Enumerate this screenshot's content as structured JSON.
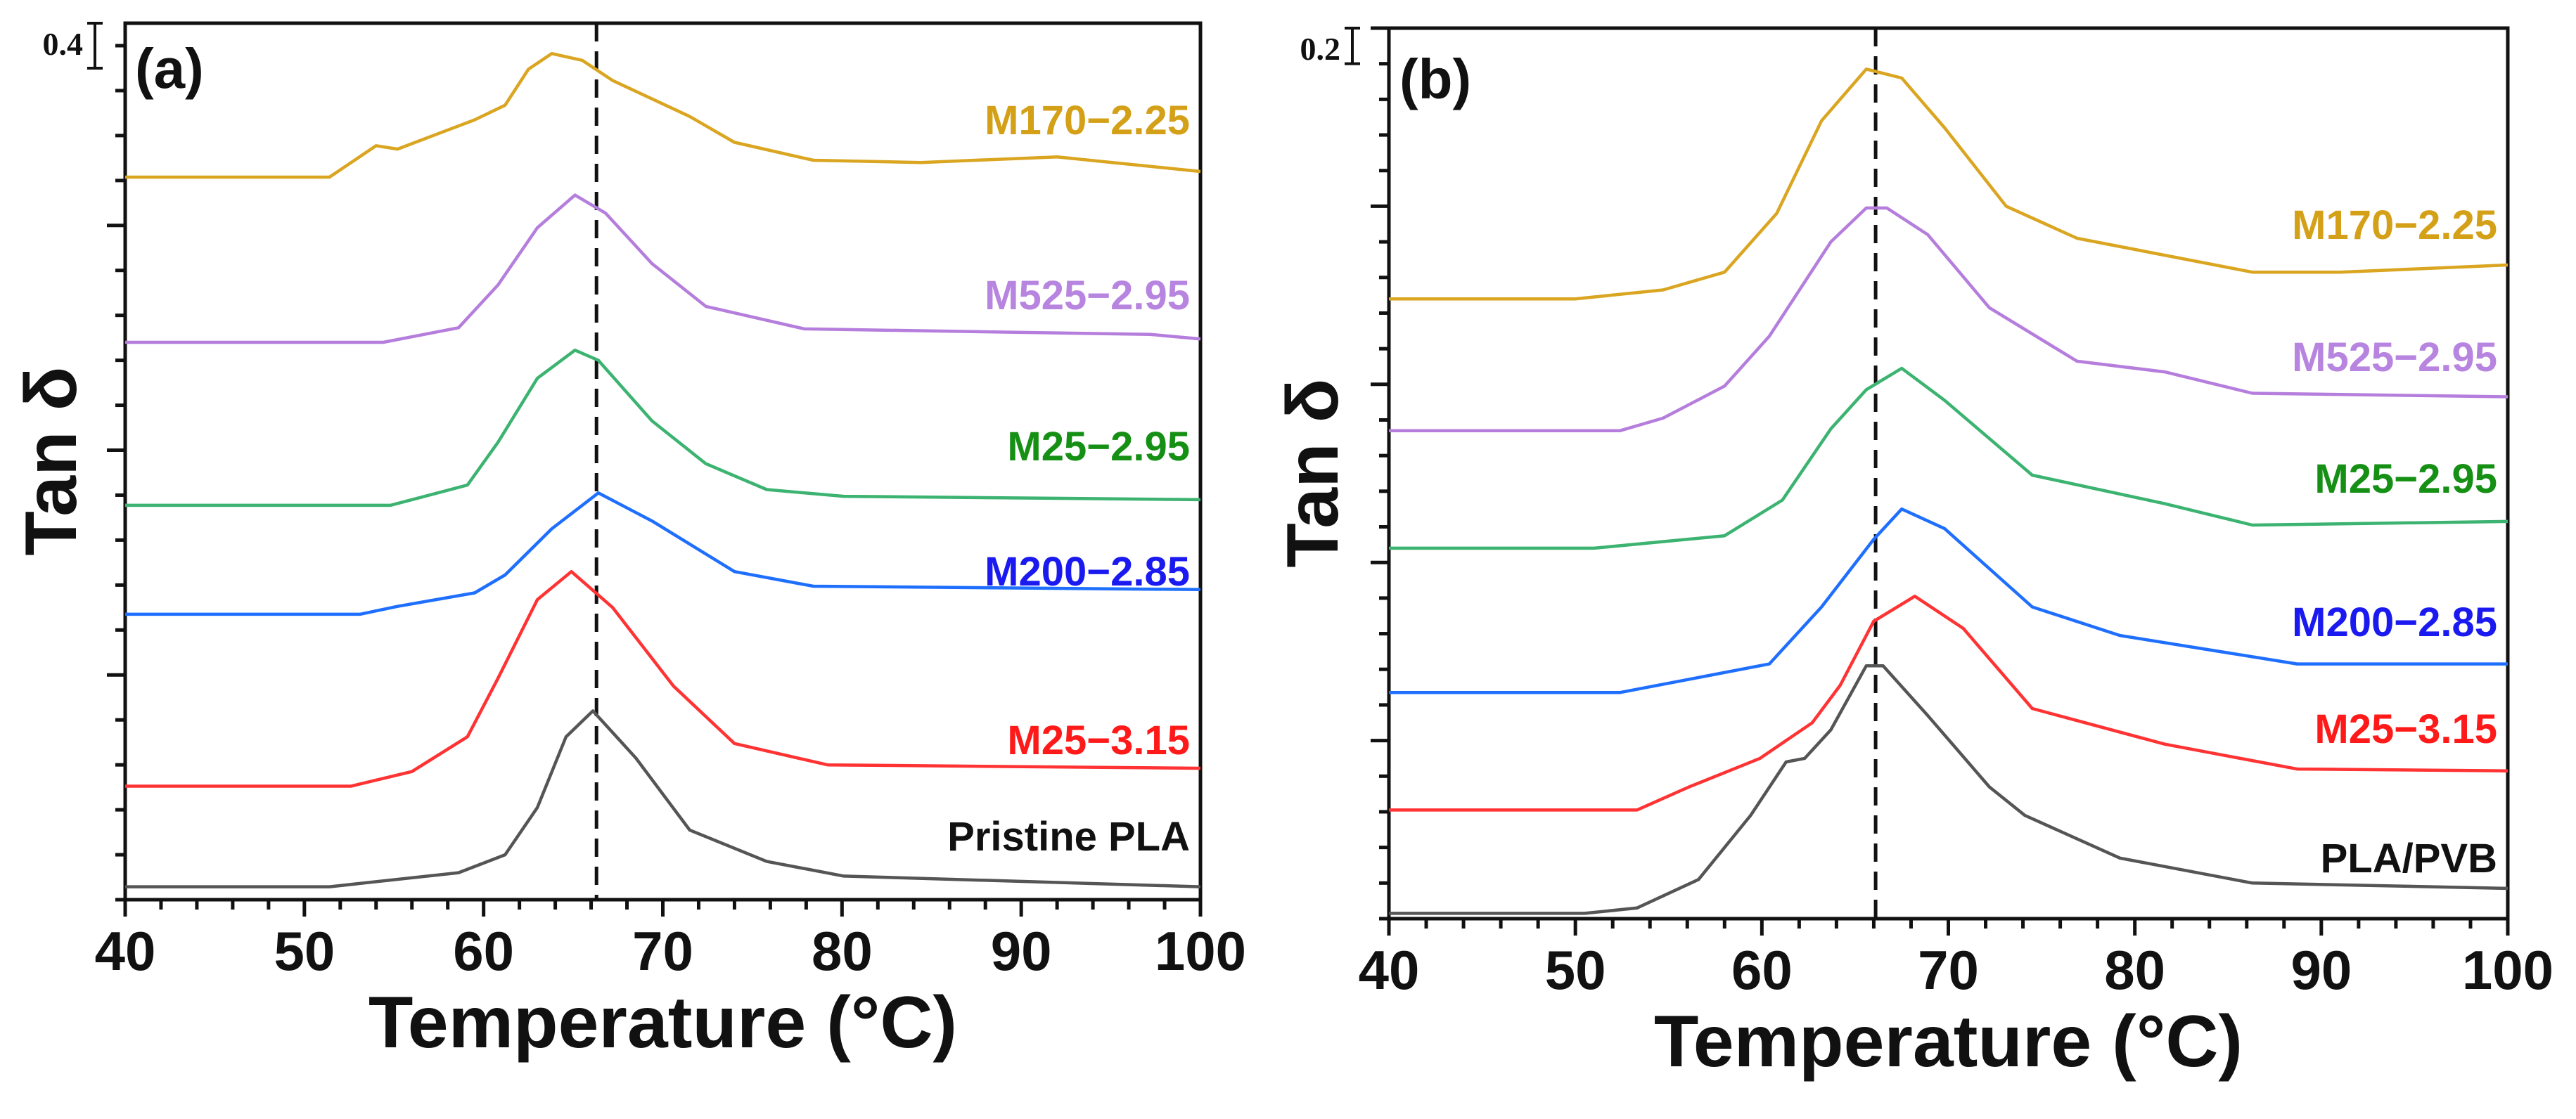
{
  "chart_data": [
    {
      "type": "line",
      "panel_label": "(a)",
      "xlabel": "Temperature (°C)",
      "xlabel_main": "Temperature (",
      "xlabel_unit": "o",
      "xlabel_end": "C)",
      "ylabel": "Tan δ",
      "xlim": [
        40,
        100
      ],
      "ylim": [
        0,
        7.8
      ],
      "x_ticks": [
        40,
        50,
        60,
        70,
        80,
        90,
        100
      ],
      "x_tick_labels": [
        "40",
        "50",
        "60",
        "70",
        "80",
        "90",
        "100"
      ],
      "x_minor_step": 2,
      "y_minor_step": 0.4,
      "y_major_step": 2.0,
      "scale_bar": {
        "label": "0.4",
        "value": 0.4
      },
      "reference_line_x": 66.3,
      "series": [
        {
          "name": "M170−2.25",
          "line_color": "#DAA520",
          "label_color": "#D4A017",
          "x": [
            40,
            51.4,
            54,
            55.2,
            59.5,
            61.2,
            62.5,
            63.8,
            65.5,
            67.2,
            71.5,
            74,
            78.4,
            84.4,
            92,
            100
          ],
          "y": [
            6.43,
            6.43,
            6.71,
            6.68,
            6.94,
            7.07,
            7.39,
            7.53,
            7.47,
            7.29,
            6.97,
            6.74,
            6.58,
            6.56,
            6.61,
            6.48
          ]
        },
        {
          "name": "M525−2.95",
          "line_color": "#B57EDC",
          "label_color": "#B784E0",
          "x": [
            40,
            54.4,
            58.6,
            60.8,
            63,
            65.1,
            66.8,
            69.4,
            72.4,
            77.9,
            97.2,
            100
          ],
          "y": [
            4.96,
            4.96,
            5.09,
            5.47,
            5.98,
            6.27,
            6.11,
            5.66,
            5.28,
            5.08,
            5.03,
            4.99
          ]
        },
        {
          "name": "M25−2.95",
          "line_color": "#3CB371",
          "label_color": "#159015",
          "x": [
            40,
            54.8,
            59.1,
            60.8,
            63,
            65.1,
            66.4,
            69.4,
            72.4,
            75.8,
            80.1,
            100
          ],
          "y": [
            3.51,
            3.51,
            3.69,
            4.07,
            4.64,
            4.89,
            4.8,
            4.26,
            3.88,
            3.65,
            3.59,
            3.56
          ]
        },
        {
          "name": "M200−2.85",
          "line_color": "#1F6FFF",
          "label_color": "#1A1AF0",
          "x": [
            40,
            53.1,
            55.2,
            59.5,
            61.2,
            63.8,
            66.4,
            69.4,
            74,
            78.4,
            100
          ],
          "y": [
            2.54,
            2.54,
            2.61,
            2.73,
            2.89,
            3.3,
            3.62,
            3.37,
            2.92,
            2.79,
            2.76
          ]
        },
        {
          "name": "M25−3.15",
          "line_color": "#FF3333",
          "label_color": "#FF1A1A",
          "x": [
            40,
            52.6,
            56,
            59.1,
            60.8,
            63,
            64.9,
            67.2,
            70.6,
            74,
            79.2,
            100
          ],
          "y": [
            1.01,
            1.01,
            1.14,
            1.45,
            1.97,
            2.67,
            2.92,
            2.6,
            1.9,
            1.39,
            1.2,
            1.17
          ]
        },
        {
          "name": "Pristine PLA",
          "line_color": "#555555",
          "label_color": "#111111",
          "x": [
            40,
            51.4,
            58.6,
            61.2,
            63,
            64.6,
            66.1,
            68.5,
            71.5,
            75.8,
            80.1,
            100
          ],
          "y": [
            0.115,
            0.115,
            0.24,
            0.4,
            0.82,
            1.45,
            1.68,
            1.26,
            0.62,
            0.34,
            0.21,
            0.115
          ]
        }
      ]
    },
    {
      "type": "line",
      "panel_label": "(b)",
      "xlabel": "Temperature (°C)",
      "xlabel_main": "Temperature (",
      "xlabel_unit": "o",
      "xlabel_end": "C)",
      "ylabel": "Tan δ",
      "xlim": [
        40,
        100
      ],
      "ylim": [
        0,
        5.0
      ],
      "x_ticks": [
        40,
        50,
        60,
        70,
        80,
        90,
        100
      ],
      "x_tick_labels": [
        "40",
        "50",
        "60",
        "70",
        "80",
        "90",
        "100"
      ],
      "x_minor_step": 2,
      "y_minor_step": 0.2,
      "y_major_step": 1.0,
      "scale_bar": {
        "label": "0.2",
        "value": 0.2
      },
      "reference_line_x": 66.1,
      "series": [
        {
          "name": "M170−2.25",
          "line_color": "#DAA520",
          "label_color": "#D4A017",
          "x": [
            40,
            50,
            54.7,
            58,
            60.8,
            63.2,
            65.6,
            67.5,
            69.8,
            73.1,
            76.9,
            86.3,
            91,
            100
          ],
          "y": [
            3.48,
            3.48,
            3.53,
            3.63,
            3.96,
            4.48,
            4.77,
            4.72,
            4.44,
            4.0,
            3.82,
            3.63,
            3.63,
            3.67
          ]
        },
        {
          "name": "M525−2.95",
          "line_color": "#B57EDC",
          "label_color": "#B784E0",
          "x": [
            40,
            52.4,
            54.7,
            58,
            60.4,
            63.7,
            65.6,
            66.7,
            68.9,
            72.2,
            76.9,
            81.6,
            86.3,
            100
          ],
          "y": [
            2.74,
            2.74,
            2.81,
            2.99,
            3.27,
            3.8,
            3.99,
            3.99,
            3.84,
            3.43,
            3.13,
            3.07,
            2.95,
            2.93
          ]
        },
        {
          "name": "M25−2.95",
          "line_color": "#3CB371",
          "label_color": "#159015",
          "x": [
            40,
            51,
            58,
            61.1,
            63.7,
            65.6,
            67.5,
            69.8,
            74.5,
            81.6,
            86.3,
            100
          ],
          "y": [
            2.08,
            2.08,
            2.15,
            2.35,
            2.75,
            2.97,
            3.09,
            2.91,
            2.49,
            2.33,
            2.21,
            2.23
          ]
        },
        {
          "name": "M200−2.85",
          "line_color": "#1F6FFF",
          "label_color": "#1A1AF0",
          "x": [
            40,
            52.4,
            60.4,
            63.2,
            66,
            67.5,
            69.8,
            74.5,
            79.2,
            88.7,
            100
          ],
          "y": [
            1.27,
            1.27,
            1.43,
            1.75,
            2.13,
            2.3,
            2.19,
            1.75,
            1.59,
            1.43,
            1.43
          ]
        },
        {
          "name": "M25−3.15",
          "line_color": "#FF3333",
          "label_color": "#FF1A1A",
          "x": [
            40,
            53.3,
            56.1,
            59.9,
            62.7,
            64.2,
            66,
            68.2,
            70.8,
            74.5,
            81.6,
            88.7,
            100
          ],
          "y": [
            0.61,
            0.61,
            0.74,
            0.9,
            1.1,
            1.31,
            1.67,
            1.81,
            1.63,
            1.18,
            0.98,
            0.84,
            0.83
          ]
        },
        {
          "name": "PLA/PVB",
          "line_color": "#555555",
          "label_color": "#111111",
          "x": [
            40,
            50.5,
            53.3,
            56.6,
            59.4,
            61.3,
            62.3,
            63.7,
            65.6,
            66.5,
            68.9,
            72.2,
            74.1,
            79.2,
            86.3,
            100
          ],
          "y": [
            0.03,
            0.03,
            0.06,
            0.22,
            0.58,
            0.88,
            0.9,
            1.06,
            1.42,
            1.42,
            1.14,
            0.74,
            0.58,
            0.34,
            0.2,
            0.17
          ]
        }
      ]
    }
  ]
}
